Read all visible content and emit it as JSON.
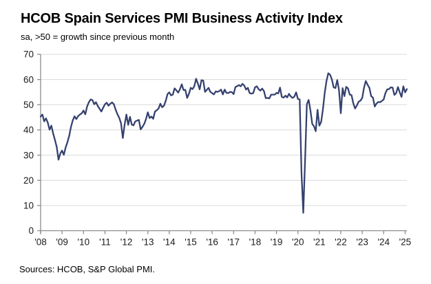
{
  "header": {
    "title": "HCOB Spain Services PMI Business Activity Index",
    "subtitle": "sa, >50 = growth since previous month"
  },
  "footer": {
    "source": "Sources: HCOB, S&P Global PMI."
  },
  "chart_data": {
    "type": "line",
    "title": "HCOB Spain Services PMI Business Activity Index",
    "subtitle": "sa, >50 = growth since previous month",
    "xlabel": "",
    "ylabel": "",
    "ylim": [
      0,
      70
    ],
    "y_ticks": [
      0,
      10,
      20,
      30,
      40,
      50,
      60,
      70
    ],
    "x_tick_labels": [
      "'08",
      "'09",
      "'10",
      "'11",
      "'12",
      "'13",
      "'14",
      "'15",
      "'16",
      "'17",
      "'18",
      "'19",
      "'20",
      "'21",
      "'22",
      "'23",
      "'24",
      "'25"
    ],
    "x_range": [
      "2008-01",
      "2025-02"
    ],
    "grid": "horizontal",
    "legend": "none",
    "line_color": "#35416f",
    "reference_level": 50,
    "series": [
      {
        "name": "Spain Services PMI Business Activity Index",
        "start": "2008-01",
        "frequency": "monthly",
        "values": [
          45.3,
          46.1,
          43.4,
          44.6,
          42.9,
          40.1,
          41.7,
          38.6,
          36.0,
          33.2,
          28.2,
          30.6,
          31.8,
          30.1,
          33.0,
          35.1,
          37.6,
          41.2,
          43.8,
          45.4,
          44.3,
          45.5,
          46.1,
          46.6,
          47.7,
          46.2,
          49.3,
          51.0,
          52.1,
          51.8,
          50.2,
          51.0,
          49.5,
          48.4,
          47.3,
          48.8,
          50.2,
          50.8,
          49.6,
          50.4,
          50.9,
          50.2,
          48.0,
          46.2,
          44.8,
          42.6,
          36.8,
          42.1,
          46.1,
          42.0,
          45.2,
          42.1,
          41.8,
          43.4,
          43.7,
          44.0,
          40.2,
          41.2,
          42.4,
          44.3,
          47.0,
          44.7,
          45.3,
          44.4,
          47.3,
          47.8,
          48.5,
          50.4,
          49.0,
          49.6,
          51.5,
          54.2,
          54.9,
          53.7,
          54.0,
          56.5,
          55.7,
          54.8,
          56.2,
          58.1,
          55.8,
          55.9,
          52.7,
          54.3,
          56.7,
          56.2,
          57.3,
          60.3,
          58.4,
          56.1,
          59.7,
          59.6,
          55.1,
          55.9,
          56.7,
          55.1,
          54.6,
          54.1,
          55.3,
          55.1,
          55.4,
          56.0,
          54.1,
          56.0,
          54.7,
          54.6,
          55.1,
          55.0,
          54.2,
          57.0,
          57.4,
          57.8,
          57.3,
          58.3,
          57.6,
          56.0,
          56.7,
          54.6,
          54.4,
          54.6,
          56.9,
          57.3,
          56.2,
          55.6,
          56.4,
          55.4,
          52.6,
          52.7,
          52.5,
          54.0,
          54.0,
          54.0,
          54.7,
          54.5,
          56.8,
          53.1,
          52.8,
          53.6,
          52.9,
          54.3,
          53.3,
          52.7,
          53.2,
          54.9,
          52.3,
          52.1,
          23.0,
          7.1,
          27.9,
          50.2,
          51.9,
          47.7,
          42.4,
          41.4,
          39.5,
          48.0,
          41.7,
          43.1,
          48.1,
          54.6,
          59.4,
          62.5,
          61.9,
          60.1,
          56.9,
          56.6,
          59.8,
          55.8,
          46.6,
          56.6,
          53.4,
          57.1,
          56.5,
          54.0,
          53.8,
          50.6,
          48.5,
          49.7,
          51.2,
          51.6,
          52.7,
          56.7,
          59.4,
          57.9,
          56.7,
          53.4,
          52.8,
          49.3,
          50.5,
          51.1,
          51.0,
          51.5,
          52.1,
          54.7,
          56.1,
          56.2,
          56.9,
          56.8,
          53.9,
          54.6,
          57.0,
          54.9,
          53.1,
          57.3,
          54.9,
          56.2
        ]
      }
    ]
  }
}
